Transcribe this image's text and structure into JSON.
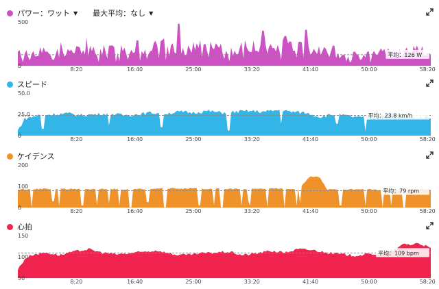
{
  "dropdowns": {
    "metric_label": "パワー：ワット",
    "compare_label": "最大平均：なし"
  },
  "x_ticks": [
    "8:20",
    "16:40",
    "25:00",
    "33:20",
    "41:40",
    "50:00",
    "58:20"
  ],
  "colors": {
    "power": "#cc52c4",
    "speed": "#33b5e8",
    "cadence": "#f0922a",
    "heart_rate": "#f0244f"
  },
  "icons": {
    "expand": "expand-icon"
  },
  "chart_data": [
    {
      "type": "area",
      "key": "power",
      "title": "パワー：ワット",
      "xlim": [
        0,
        58.8
      ],
      "ylim": [
        0,
        500
      ],
      "ytick_labels": [
        "500",
        "0"
      ],
      "yticks": [
        500,
        0
      ],
      "average": 126,
      "average_label": "平均：126 W",
      "x_ticks": [
        "8:20",
        "16:40",
        "25:00",
        "33:20",
        "41:40",
        "50:00",
        "58:20"
      ],
      "x": [
        0,
        3,
        6,
        9,
        12,
        15,
        18,
        21,
        24,
        27,
        30,
        33,
        36,
        39,
        42,
        45,
        48,
        51,
        54,
        57,
        58.8
      ],
      "y": [
        150,
        180,
        160,
        200,
        190,
        220,
        200,
        260,
        210,
        230,
        190,
        250,
        220,
        260,
        230,
        150,
        100,
        160,
        170,
        190,
        160
      ],
      "peaks": [
        [
          6,
          270
        ],
        [
          10,
          320
        ],
        [
          13,
          230
        ],
        [
          17,
          290
        ],
        [
          23,
          480
        ],
        [
          26,
          290
        ],
        [
          35,
          400
        ],
        [
          38,
          340
        ],
        [
          41,
          410
        ],
        [
          45,
          230
        ],
        [
          48,
          160
        ]
      ]
    },
    {
      "type": "area",
      "key": "speed",
      "title": "スピード",
      "xlim": [
        0,
        58.8
      ],
      "ylim": [
        0,
        50
      ],
      "ytick_labels": [
        "50.0",
        "25.0",
        "0"
      ],
      "yticks": [
        50,
        25,
        0
      ],
      "average": 23.8,
      "average_label": "平均：23.8 km/h",
      "x_ticks": [
        "8:20",
        "16:40",
        "25:00",
        "33:20",
        "41:40",
        "50:00",
        "58:20"
      ],
      "x": [
        0,
        1,
        3,
        5,
        7,
        9,
        11,
        13,
        15,
        17,
        19,
        21,
        23,
        25,
        27,
        29,
        31,
        33,
        35,
        37,
        39,
        41,
        43,
        45,
        47,
        49,
        51,
        53,
        55,
        57,
        58.8
      ],
      "y": [
        6,
        20,
        24,
        25,
        26,
        24,
        25,
        26,
        24,
        25,
        27,
        26,
        28,
        27,
        29,
        27,
        28,
        29,
        28,
        30,
        28,
        27,
        22,
        25,
        23,
        21,
        23,
        26,
        22,
        21,
        22
      ],
      "dips": [
        [
          3.5,
          8
        ],
        [
          13,
          12
        ],
        [
          20.5,
          10
        ],
        [
          30,
          6
        ],
        [
          37.5,
          14
        ],
        [
          45.5,
          14
        ],
        [
          49.5,
          5
        ]
      ]
    },
    {
      "type": "area",
      "key": "cadence",
      "title": "ケイデンス",
      "xlim": [
        0,
        58.8
      ],
      "ylim": [
        0,
        200
      ],
      "ytick_labels": [
        "200",
        "100",
        "0"
      ],
      "yticks": [
        200,
        100,
        0
      ],
      "average": 79,
      "average_label": "平均：79 rpm",
      "x_ticks": [
        "8:20",
        "16:40",
        "25:00",
        "33:20",
        "41:40",
        "50:00",
        "58:20"
      ],
      "x": [
        0,
        4,
        8,
        12,
        16,
        20,
        24,
        28,
        32,
        36,
        40,
        41.5,
        43,
        44,
        48,
        52,
        56,
        58.8
      ],
      "y": [
        85,
        88,
        87,
        88,
        86,
        89,
        90,
        88,
        87,
        90,
        88,
        145,
        142,
        85,
        86,
        84,
        86,
        85
      ],
      "dips": [
        [
          2,
          0
        ],
        [
          5,
          30
        ],
        [
          9,
          0
        ],
        [
          13,
          20
        ],
        [
          16,
          0
        ],
        [
          18.5,
          25
        ],
        [
          21,
          0
        ],
        [
          26,
          10
        ],
        [
          29,
          0
        ],
        [
          33,
          30
        ],
        [
          35.5,
          0
        ],
        [
          38,
          0
        ],
        [
          40.2,
          20
        ],
        [
          46,
          0
        ],
        [
          49.5,
          10
        ],
        [
          52,
          0
        ],
        [
          55,
          0
        ]
      ]
    },
    {
      "type": "area",
      "key": "heart_rate",
      "title": "心拍",
      "xlim": [
        0,
        58.8
      ],
      "ylim": [
        50,
        150
      ],
      "ytick_labels": [
        "150",
        "100",
        "50"
      ],
      "yticks": [
        150,
        100,
        50
      ],
      "average": 109,
      "average_label": "平均：109 bpm",
      "x_ticks": [
        "8:20",
        "16:40",
        "25:00",
        "33:20",
        "41:40",
        "50:00",
        "58:20"
      ],
      "x": [
        0,
        1,
        2,
        4,
        6,
        8,
        10,
        12,
        14,
        16,
        18,
        20,
        22,
        24,
        26,
        28,
        30,
        32,
        34,
        36,
        38,
        40,
        42,
        44,
        46,
        48,
        50,
        52,
        54,
        55,
        56,
        57,
        58,
        58.8
      ],
      "y": [
        70,
        95,
        105,
        110,
        104,
        112,
        118,
        110,
        106,
        108,
        112,
        115,
        106,
        104,
        108,
        110,
        112,
        104,
        108,
        114,
        110,
        118,
        116,
        110,
        106,
        103,
        106,
        108,
        118,
        132,
        128,
        133,
        126,
        120
      ]
    }
  ]
}
